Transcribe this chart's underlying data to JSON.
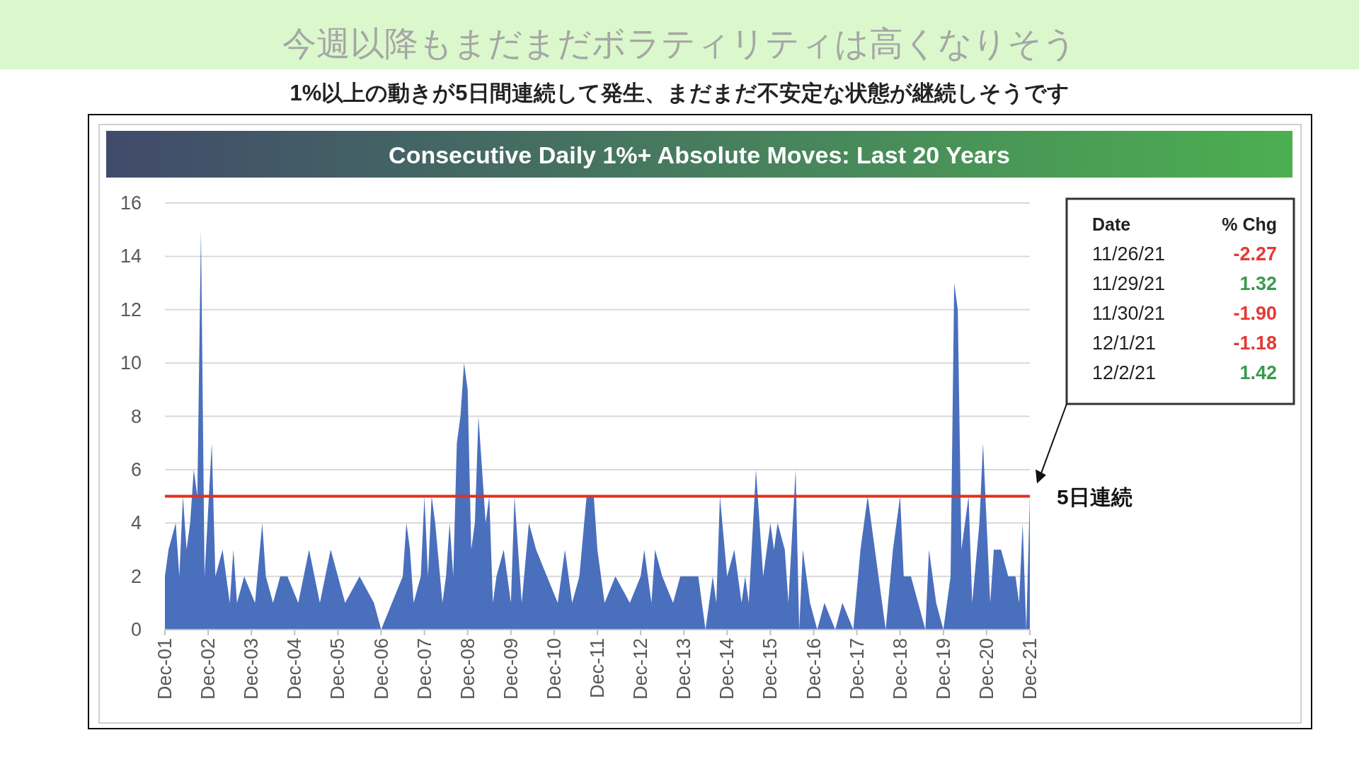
{
  "chart_data": [
    {
      "type": "other",
      "title": "今週以降もまだまだボラティリティは高くなりそう",
      "subtitle": "1%以上の動きが5日間連続して発生、まだまだ不安定な状態が継続しそうです"
    },
    {
      "type": "area",
      "title": "Consecutive Daily 1%+ Absolute Moves: Last 20 Years",
      "color": "#4a6fbd",
      "x": [
        "2001-12",
        "2002-01",
        "2002-03",
        "2002-04",
        "2002-05",
        "2002-06",
        "2002-07",
        "2002-08",
        "2002-09",
        "2002-10",
        "2002-11",
        "2003-01",
        "2003-02",
        "2003-04",
        "2003-06",
        "2003-07",
        "2003-08",
        "2003-10",
        "2004-01",
        "2004-03",
        "2004-04",
        "2004-06",
        "2004-08",
        "2004-10",
        "2005-01",
        "2005-04",
        "2005-07",
        "2005-10",
        "2006-02",
        "2006-06",
        "2006-10",
        "2006-12",
        "2007-03",
        "2007-06",
        "2007-07",
        "2007-08",
        "2007-09",
        "2007-11",
        "2007-12",
        "2008-01",
        "2008-02",
        "2008-03",
        "2008-05",
        "2008-06",
        "2008-07",
        "2008-08",
        "2008-09",
        "2008-10",
        "2008-11",
        "2008-12",
        "2009-01",
        "2009-02",
        "2009-03",
        "2009-04",
        "2009-05",
        "2009-06",
        "2009-07",
        "2009-08",
        "2009-10",
        "2009-12",
        "2010-01",
        "2010-03",
        "2010-05",
        "2010-07",
        "2010-10",
        "2011-01",
        "2011-03",
        "2011-05",
        "2011-07",
        "2011-09",
        "2011-11",
        "2011-12",
        "2012-02",
        "2012-05",
        "2012-09",
        "2012-12",
        "2013-01",
        "2013-03",
        "2013-04",
        "2013-06",
        "2013-09",
        "2013-11",
        "2014-02",
        "2014-04",
        "2014-06",
        "2014-08",
        "2014-09",
        "2014-10",
        "2014-12",
        "2015-02",
        "2015-04",
        "2015-05",
        "2015-06",
        "2015-08",
        "2015-10",
        "2015-12",
        "2016-01",
        "2016-02",
        "2016-04",
        "2016-05",
        "2016-07",
        "2016-08",
        "2016-09",
        "2016-11",
        "2017-01",
        "2017-03",
        "2017-06",
        "2017-08",
        "2017-11",
        "2018-01",
        "2018-03",
        "2018-04",
        "2018-06",
        "2018-08",
        "2018-10",
        "2018-12",
        "2019-01",
        "2019-03",
        "2019-05",
        "2019-07",
        "2019-08",
        "2019-10",
        "2019-12",
        "2020-02",
        "2020-03",
        "2020-04",
        "2020-05",
        "2020-07",
        "2020-08",
        "2020-10",
        "2020-11",
        "2021-01",
        "2021-02",
        "2021-04",
        "2021-06",
        "2021-08",
        "2021-09",
        "2021-10",
        "2021-11",
        "2021-12"
      ],
      "values": [
        2,
        3,
        4,
        2,
        5,
        3,
        4,
        6,
        5,
        15,
        2,
        7,
        2,
        3,
        1,
        3,
        1,
        2,
        1,
        4,
        2,
        1,
        2,
        2,
        1,
        3,
        1,
        3,
        1,
        2,
        1,
        0,
        1,
        2,
        4,
        3,
        1,
        2,
        5,
        2,
        5,
        4,
        1,
        2,
        4,
        2,
        7,
        8,
        10,
        9,
        3,
        4,
        8,
        6,
        4,
        5,
        1,
        2,
        3,
        1,
        5,
        1,
        4,
        3,
        2,
        1,
        3,
        1,
        2,
        5,
        5,
        3,
        1,
        2,
        1,
        2,
        3,
        1,
        3,
        2,
        1,
        2,
        2,
        2,
        0,
        2,
        1,
        5,
        2,
        3,
        1,
        2,
        1,
        6,
        2,
        4,
        3,
        4,
        3,
        1,
        6,
        0,
        3,
        1,
        0,
        1,
        0,
        1,
        0,
        3,
        5,
        4,
        2,
        0,
        3,
        5,
        2,
        2,
        1,
        0,
        3,
        1,
        0,
        2,
        13,
        12,
        3,
        5,
        1,
        4,
        7,
        1,
        3,
        3,
        2,
        2,
        1,
        4,
        0,
        5
      ],
      "xlim": [
        "2001-12",
        "2021-12"
      ],
      "xticks": [
        {
          "value": "2001-12",
          "label": "Dec-01"
        },
        {
          "value": "2002-12",
          "label": "Dec-02"
        },
        {
          "value": "2003-12",
          "label": "Dec-03"
        },
        {
          "value": "2004-12",
          "label": "Dec-04"
        },
        {
          "value": "2005-12",
          "label": "Dec-05"
        },
        {
          "value": "2006-12",
          "label": "Dec-06"
        },
        {
          "value": "2007-12",
          "label": "Dec-07"
        },
        {
          "value": "2008-12",
          "label": "Dec-08"
        },
        {
          "value": "2009-12",
          "label": "Dec-09"
        },
        {
          "value": "2010-12",
          "label": "Dec-10"
        },
        {
          "value": "2011-12",
          "label": "Dec-11"
        },
        {
          "value": "2012-12",
          "label": "Dec-12"
        },
        {
          "value": "2013-12",
          "label": "Dec-13"
        },
        {
          "value": "2014-12",
          "label": "Dec-14"
        },
        {
          "value": "2015-12",
          "label": "Dec-15"
        },
        {
          "value": "2016-12",
          "label": "Dec-16"
        },
        {
          "value": "2017-12",
          "label": "Dec-17"
        },
        {
          "value": "2018-12",
          "label": "Dec-18"
        },
        {
          "value": "2019-12",
          "label": "Dec-19"
        },
        {
          "value": "2020-12",
          "label": "Dec-20"
        },
        {
          "value": "2021-12",
          "label": "Dec-21"
        }
      ],
      "ylim": [
        0,
        16
      ],
      "yticks": [
        0,
        2,
        4,
        6,
        8,
        10,
        12,
        14,
        16
      ],
      "grid": "y",
      "ref_lines": [
        {
          "axis": "y",
          "value": 5,
          "label": "5日連続",
          "color": "#e0321e"
        }
      ],
      "annotations": [
        "Date",
        "% Chg",
        "11/26/21",
        "-2.27",
        "11/29/21",
        "1.32",
        "11/30/21",
        "-1.90",
        "12/1/21",
        "-1.18",
        "12/2/21",
        "1.42"
      ]
    }
  ]
}
